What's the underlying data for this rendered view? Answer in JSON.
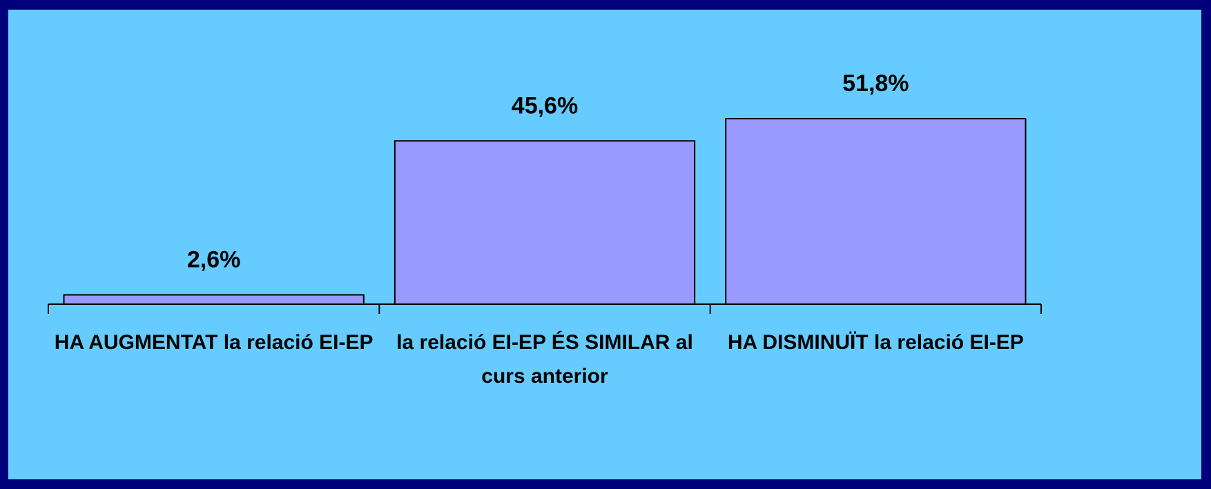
{
  "chart_data": {
    "type": "bar",
    "categories": [
      "HA AUGMENTAT la relació EI-EP",
      "la relació EI-EP ÉS SIMILAR al curs anterior",
      "HA DISMINUÏT la relació EI-EP"
    ],
    "values": [
      2.6,
      45.6,
      51.8
    ],
    "value_labels": [
      "2,6%",
      "45,6%",
      "51,8%"
    ],
    "color": "#9999ff",
    "ylim": [
      0,
      60
    ]
  }
}
